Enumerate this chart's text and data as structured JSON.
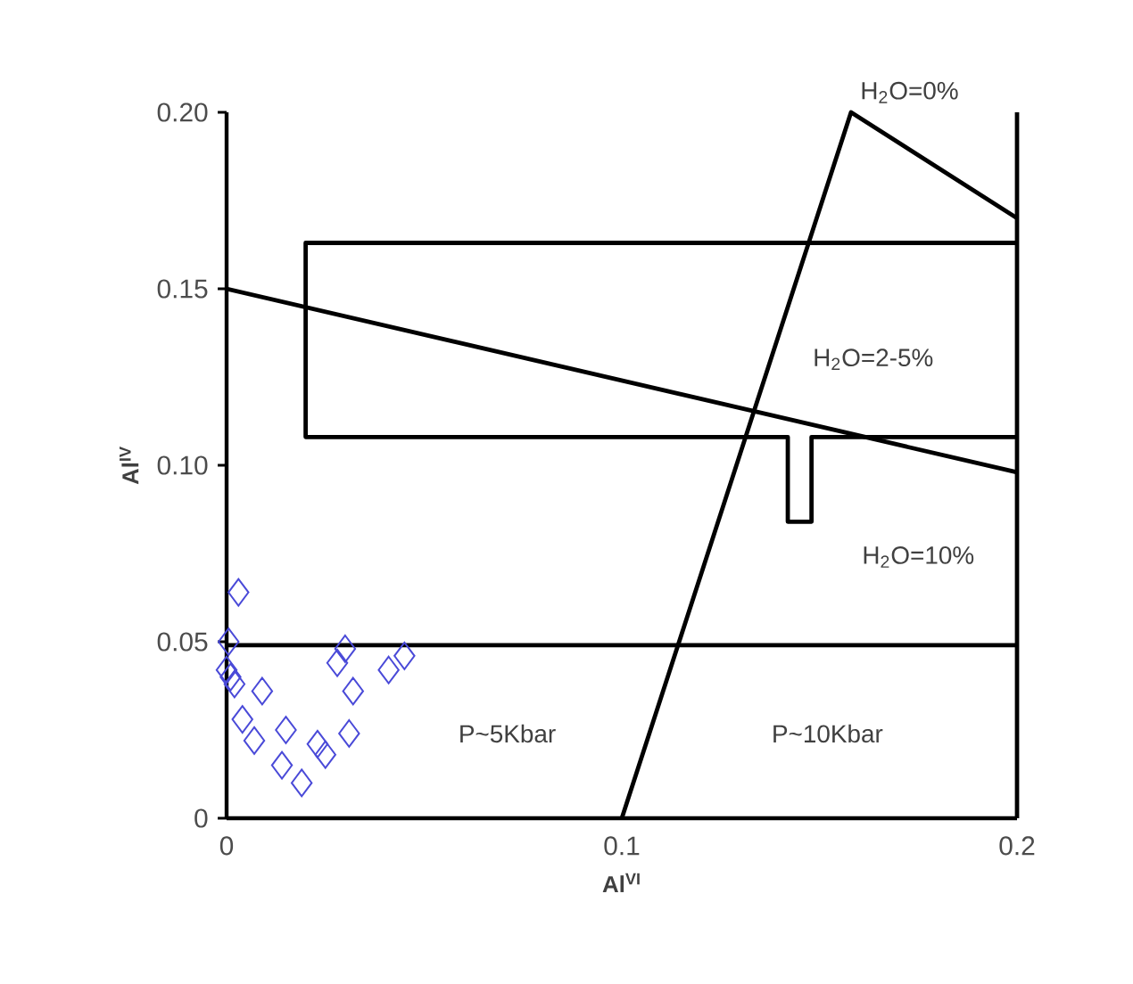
{
  "chart_data": {
    "type": "scatter",
    "xlabel": "Al$^{VI}$",
    "ylabel": "Al$^{IV}$",
    "xlim": [
      0,
      0.2
    ],
    "ylim": [
      0,
      0.2
    ],
    "xticks": [
      0,
      0.1,
      0.2
    ],
    "yticks": [
      0,
      {
        "value": 0.05,
        "label": "0.05"
      },
      {
        "value": 0.1,
        "label": "0.10"
      },
      {
        "value": 0.15,
        "label": "0.15"
      },
      {
        "value": 0.2,
        "label": "0.20"
      }
    ],
    "grid": false,
    "series": [
      {
        "marker": "diamond",
        "color": "#4a4ad8",
        "x": [
          0.003,
          0.0005,
          0.001,
          0.002,
          0.0,
          0.009,
          0.004,
          0.007,
          0.015,
          0.014,
          0.019,
          0.023,
          0.025,
          0.031,
          0.032,
          0.03,
          0.028,
          0.041,
          0.045
        ],
        "values": [
          0.064,
          0.05,
          0.04,
          0.038,
          0.042,
          0.036,
          0.028,
          0.022,
          0.025,
          0.015,
          0.01,
          0.021,
          0.018,
          0.024,
          0.036,
          0.048,
          0.044,
          0.042,
          0.046
        ]
      },
      {
        "type": "line",
        "marker": "none",
        "color": "#000000",
        "x": [
          0.1,
          0.158,
          0.2
        ],
        "values": [
          0,
          0.2,
          0.17
        ]
      },
      {
        "type": "line",
        "marker": "none",
        "color": "#000000",
        "x": [
          0,
          0.2
        ],
        "values": [
          0.15,
          0.098
        ]
      },
      {
        "type": "line",
        "marker": "none",
        "color": "#000000",
        "x": [
          0.2,
          0.02,
          0.02,
          0.142,
          0.142,
          0.148,
          0.148,
          0.2
        ],
        "values": [
          0.163,
          0.163,
          0.108,
          0.108,
          0.084,
          0.084,
          0.108,
          0.108
        ]
      },
      {
        "type": "line",
        "marker": "none",
        "color": "#000000",
        "x": [
          0,
          0.2
        ],
        "values": [
          0.049,
          0.049
        ]
      },
      {
        "type": "line",
        "marker": "none",
        "color": "#000000",
        "x": [
          0.2,
          0.2
        ],
        "values": [
          0,
          0.2
        ]
      }
    ],
    "annotations": [
      {
        "text": "H$_{2}$O=0%",
        "x": 0.158,
        "y": 0.2
      },
      "H$_{2}$O=2-5%",
      "H$_{2}$O=10%",
      "P~5Kbar",
      "P~10Kbar"
    ]
  }
}
